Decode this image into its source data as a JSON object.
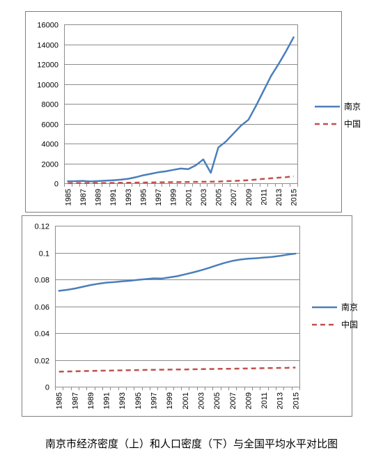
{
  "caption": "南京市经济密度（上）和人口密度（下）与全国平均水平对比图",
  "colors": {
    "nanjing": "#4a7ebb",
    "china": "#c0504d",
    "grid": "#8c8c8c",
    "frame": "#7f7f7f"
  },
  "chart_data": [
    {
      "type": "line",
      "title": "",
      "xlabel": "",
      "ylabel": "",
      "ylim": [
        0,
        16000
      ],
      "yticks": [
        "0",
        "2000",
        "4000",
        "6000",
        "8000",
        "10000",
        "12000",
        "14000",
        "16000"
      ],
      "grid": true,
      "legend_position": "right",
      "x": [
        "1985",
        "1986",
        "1987",
        "1988",
        "1989",
        "1990",
        "1991",
        "1992",
        "1993",
        "1994",
        "1995",
        "1996",
        "1997",
        "1998",
        "1999",
        "2000",
        "2001",
        "2002",
        "2003",
        "2004",
        "2005",
        "2006",
        "2007",
        "2008",
        "2009",
        "2010",
        "2011",
        "2012",
        "2013",
        "2014",
        "2015"
      ],
      "xticks": [
        "1985",
        "1987",
        "1989",
        "1991",
        "1993",
        "1995",
        "1997",
        "1999",
        "2001",
        "2003",
        "2005",
        "2007",
        "2009",
        "2011",
        "2013",
        "2015"
      ],
      "series": [
        {
          "name": "南京",
          "style": "solid",
          "color": "#4a7ebb",
          "values": [
            200,
            210,
            240,
            180,
            220,
            260,
            300,
            360,
            450,
            600,
            800,
            950,
            1100,
            1200,
            1350,
            1480,
            1420,
            1800,
            2400,
            1050,
            3600,
            4200,
            5000,
            5800,
            6400,
            7800,
            9300,
            10800,
            12000,
            13300,
            14700
          ]
        },
        {
          "name": "中国",
          "style": "dashed",
          "color": "#c0504d",
          "values": [
            10,
            15,
            18,
            20,
            25,
            30,
            35,
            40,
            50,
            60,
            70,
            80,
            90,
            100,
            110,
            120,
            130,
            140,
            150,
            160,
            170,
            200,
            230,
            270,
            310,
            370,
            440,
            500,
            560,
            620,
            700
          ]
        }
      ]
    },
    {
      "type": "line",
      "title": "",
      "xlabel": "",
      "ylabel": "",
      "ylim": [
        0,
        0.12
      ],
      "yticks": [
        "0",
        "0.02",
        "0.04",
        "0.06",
        "0.08",
        "0.1",
        "0.12"
      ],
      "grid": true,
      "legend_position": "right",
      "x": [
        "1985",
        "1986",
        "1987",
        "1988",
        "1989",
        "1990",
        "1991",
        "1992",
        "1993",
        "1994",
        "1995",
        "1996",
        "1997",
        "1998",
        "1999",
        "2000",
        "2001",
        "2002",
        "2003",
        "2004",
        "2005",
        "2006",
        "2007",
        "2008",
        "2009",
        "2010",
        "2011",
        "2012",
        "2013",
        "2014",
        "2015"
      ],
      "xticks": [
        "1985",
        "1987",
        "1989",
        "1991",
        "1993",
        "1995",
        "1997",
        "1999",
        "2001",
        "2003",
        "2005",
        "2007",
        "2009",
        "2011",
        "2013",
        "2015"
      ],
      "series": [
        {
          "name": "南京",
          "style": "solid",
          "color": "#4a7ebb",
          "values": [
            0.0715,
            0.0722,
            0.0732,
            0.0745,
            0.0758,
            0.0768,
            0.0776,
            0.078,
            0.0786,
            0.079,
            0.0797,
            0.0802,
            0.0808,
            0.0806,
            0.0815,
            0.0824,
            0.0838,
            0.0852,
            0.0868,
            0.0885,
            0.0905,
            0.0923,
            0.0938,
            0.0948,
            0.0955,
            0.0958,
            0.0963,
            0.0968,
            0.0975,
            0.0985,
            0.0992
          ]
        },
        {
          "name": "中国",
          "style": "dashed",
          "color": "#c0504d",
          "values": [
            0.0112,
            0.0113,
            0.0115,
            0.0117,
            0.0118,
            0.0119,
            0.012,
            0.0121,
            0.0122,
            0.0123,
            0.0124,
            0.0125,
            0.0126,
            0.0127,
            0.0128,
            0.0129,
            0.0129,
            0.013,
            0.0131,
            0.0132,
            0.0133,
            0.0134,
            0.0134,
            0.0135,
            0.0136,
            0.0137,
            0.0138,
            0.0139,
            0.014,
            0.0141,
            0.0143
          ]
        }
      ]
    }
  ]
}
